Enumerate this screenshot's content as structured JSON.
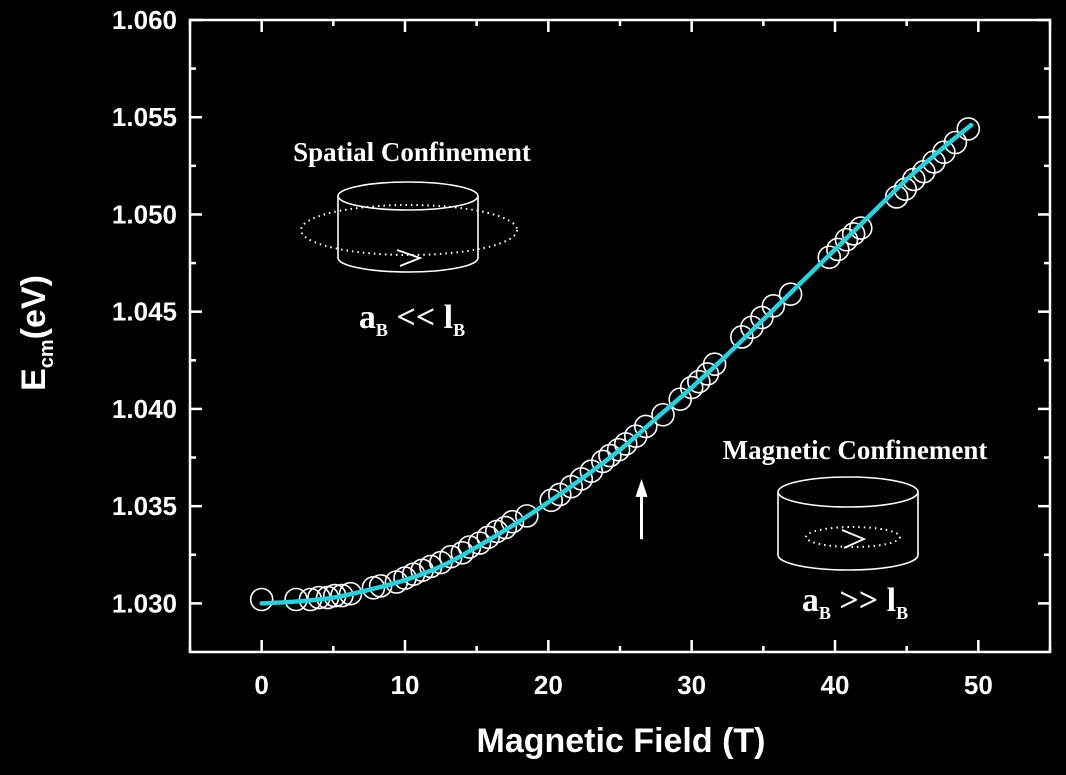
{
  "chart_data": {
    "type": "scatter",
    "title": "",
    "xlabel": "Magnetic Field (T)",
    "ylabel": {
      "main": "E",
      "sub": "cm",
      "unit": "(eV)"
    },
    "xlim": [
      -5,
      55
    ],
    "ylim": [
      1.0275,
      1.06
    ],
    "x_ticks": [
      0,
      10,
      20,
      30,
      40,
      50
    ],
    "y_ticks": [
      1.03,
      1.035,
      1.04,
      1.045,
      1.05,
      1.055,
      1.06
    ],
    "x_tick_labels": [
      "0",
      "10",
      "20",
      "30",
      "40",
      "50"
    ],
    "y_tick_labels": [
      "1.030",
      "1.035",
      "1.040",
      "1.045",
      "1.050",
      "1.055",
      "1.060"
    ],
    "grid": false,
    "colors": {
      "background": "#000000",
      "axes": "#ffffff",
      "points": "#ffffff",
      "fit": "#22d3e0"
    },
    "series": [
      {
        "kind": "markers",
        "x": [
          0,
          2.4,
          3.4,
          4.0,
          4.6,
          5.1,
          5.6,
          6.2,
          7.8,
          8.3,
          9.4,
          10.0,
          10.6,
          11.2,
          11.8,
          12.5,
          13.2,
          14.0,
          14.5,
          15.2,
          15.8,
          16.4,
          17.0,
          17.5,
          18.5,
          20.2,
          20.8,
          21.6,
          22.3,
          23.0,
          23.8,
          24.3,
          24.9,
          25.4,
          26.1,
          26.8,
          28.0,
          29.2,
          30.0,
          30.5,
          31.1,
          31.6,
          33.5,
          34.2,
          34.9,
          35.7,
          36.9,
          39.6,
          40.2,
          40.8,
          41.3,
          41.8,
          44.3,
          44.9,
          45.5,
          46.2,
          46.9,
          47.6,
          48.4,
          49.3
        ],
        "y": [
          1.0302,
          1.0302,
          1.0302,
          1.0303,
          1.0303,
          1.0304,
          1.0304,
          1.0305,
          1.0308,
          1.0309,
          1.0311,
          1.0313,
          1.0315,
          1.0317,
          1.0319,
          1.0321,
          1.0324,
          1.0326,
          1.0329,
          1.0331,
          1.0334,
          1.0337,
          1.0339,
          1.0342,
          1.0345,
          1.0353,
          1.0356,
          1.036,
          1.0364,
          1.0368,
          1.0373,
          1.0376,
          1.0379,
          1.0382,
          1.0386,
          1.0391,
          1.0397,
          1.0405,
          1.0411,
          1.0414,
          1.0418,
          1.0423,
          1.0437,
          1.0442,
          1.0447,
          1.0453,
          1.0459,
          1.0478,
          1.0482,
          1.0487,
          1.049,
          1.0493,
          1.0509,
          1.0513,
          1.0518,
          1.0522,
          1.0527,
          1.0532,
          1.0537,
          1.0544
        ]
      },
      {
        "kind": "fit-line",
        "x": [
          0,
          2.5,
          5,
          7.5,
          10,
          12.5,
          15,
          17.5,
          20,
          22.5,
          25,
          27.5,
          30,
          32.5,
          35,
          37.5,
          40,
          42.5,
          45,
          47.5,
          49.5
        ],
        "y": [
          1.03,
          1.0301,
          1.0303,
          1.0307,
          1.0312,
          1.0319,
          1.0329,
          1.034,
          1.0352,
          1.0365,
          1.0379,
          1.0395,
          1.0411,
          1.0428,
          1.0446,
          1.0464,
          1.0482,
          1.05,
          1.0518,
          1.0534,
          1.0546
        ]
      }
    ],
    "arrow": {
      "x": 26.5,
      "y_tail": 1.0333,
      "y_head": 1.0364
    },
    "annotations": {
      "spatial": {
        "title": "Spatial Confinement",
        "relation": {
          "a": "a",
          "a_sub": "B",
          "op": " << ",
          "l": "l",
          "l_sub": "B"
        }
      },
      "magnetic": {
        "title": "Magnetic Confinement",
        "relation": {
          "a": "a",
          "a_sub": "B",
          "op": " >> ",
          "l": "l",
          "l_sub": "B"
        }
      }
    }
  }
}
